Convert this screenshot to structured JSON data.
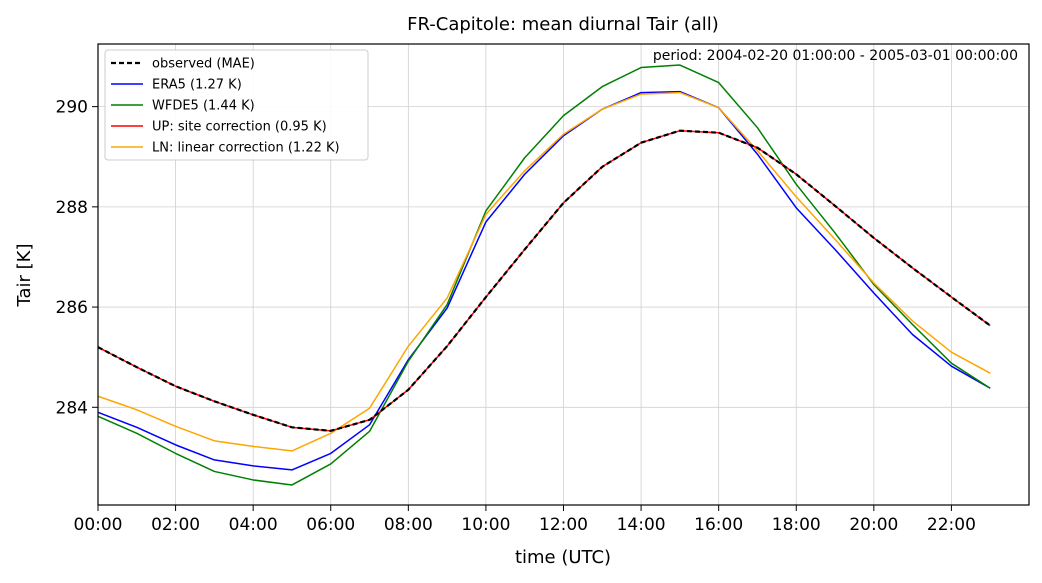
{
  "chart_data": {
    "type": "line",
    "title": "FR-Capitole: mean diurnal Tair (all)",
    "annotation": "period: 2004-02-20 01:00:00 - 2005-03-01 00:00:00",
    "xlabel": "time (UTC)",
    "ylabel": "Tair [K]",
    "xlim": [
      0,
      24
    ],
    "ylim": [
      282.05,
      291.25
    ],
    "x_ticks": [
      0,
      2,
      4,
      6,
      8,
      10,
      12,
      14,
      16,
      18,
      20,
      22
    ],
    "x_tick_labels": [
      "00:00",
      "02:00",
      "04:00",
      "06:00",
      "08:00",
      "10:00",
      "12:00",
      "14:00",
      "16:00",
      "18:00",
      "20:00",
      "22:00"
    ],
    "y_ticks": [
      284,
      286,
      288,
      290
    ],
    "y_tick_labels": [
      "284",
      "286",
      "288",
      "290"
    ],
    "grid": true,
    "legend_position": "top-left",
    "x": [
      0,
      1,
      2,
      3,
      4,
      5,
      6,
      7,
      8,
      9,
      10,
      11,
      12,
      13,
      14,
      15,
      16,
      17,
      18,
      19,
      20,
      21,
      22,
      23
    ],
    "series": [
      {
        "name": "observed (MAE)",
        "color": "#000000",
        "dash": true,
        "values": [
          285.2,
          284.8,
          284.42,
          284.12,
          283.85,
          283.6,
          283.53,
          283.75,
          284.35,
          285.22,
          286.2,
          287.15,
          288.08,
          288.8,
          289.28,
          289.52,
          289.48,
          289.18,
          288.65,
          288.02,
          287.38,
          286.78,
          286.2,
          285.63
        ]
      },
      {
        "name": "ERA5 (1.27 K)",
        "color": "#0000ff",
        "dash": false,
        "values": [
          283.9,
          283.6,
          283.25,
          282.95,
          282.83,
          282.75,
          283.08,
          283.65,
          284.95,
          285.98,
          287.7,
          288.65,
          289.42,
          289.95,
          290.28,
          290.3,
          289.98,
          289.05,
          287.98,
          287.15,
          286.28,
          285.45,
          284.82,
          284.38
        ]
      },
      {
        "name": "WFDE5 (1.44 K)",
        "color": "#008000",
        "dash": false,
        "values": [
          283.82,
          283.48,
          283.08,
          282.72,
          282.55,
          282.45,
          282.87,
          283.52,
          284.92,
          286.05,
          287.92,
          288.98,
          289.82,
          290.4,
          290.78,
          290.83,
          290.48,
          289.58,
          288.45,
          287.48,
          286.45,
          285.65,
          284.88,
          284.38
        ]
      },
      {
        "name": "UP: site correction (0.95 K)",
        "color": "#ff0000",
        "dash": false,
        "values": [
          285.2,
          284.8,
          284.42,
          284.12,
          283.85,
          283.6,
          283.53,
          283.75,
          284.35,
          285.22,
          286.2,
          287.15,
          288.08,
          288.8,
          289.28,
          289.52,
          289.48,
          289.18,
          288.65,
          288.02,
          287.38,
          286.78,
          286.2,
          285.63
        ]
      },
      {
        "name": "LN: linear correction (1.22 K)",
        "color": "#ffa500",
        "dash": false,
        "values": [
          284.22,
          283.95,
          283.62,
          283.33,
          283.22,
          283.13,
          283.48,
          283.98,
          285.22,
          286.18,
          287.85,
          288.72,
          289.45,
          289.95,
          290.25,
          290.28,
          289.98,
          289.12,
          288.2,
          287.35,
          286.48,
          285.72,
          285.1,
          284.68
        ]
      }
    ]
  }
}
